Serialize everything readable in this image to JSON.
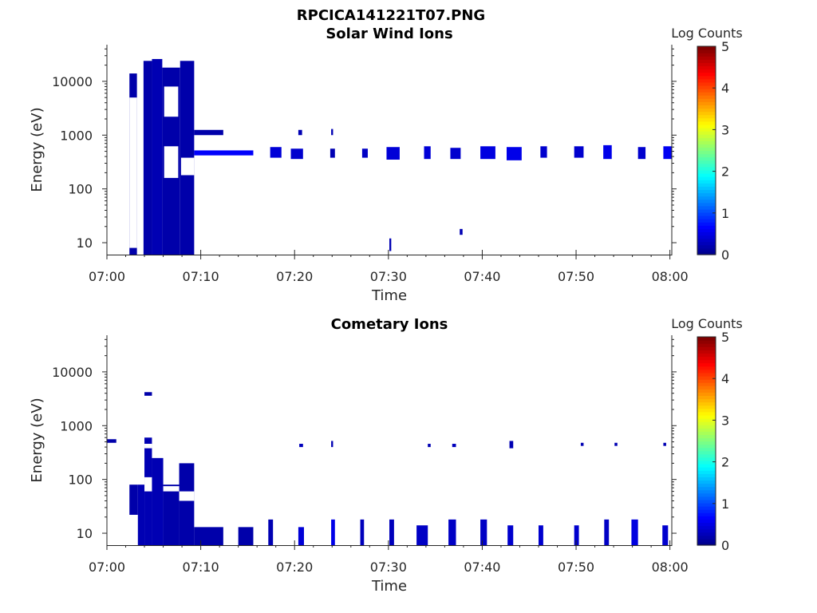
{
  "figure_title": "RPCICA141221T07.PNG",
  "colormap": [
    "#00008f",
    "#0000ff",
    "#0080ff",
    "#00ffff",
    "#80ff80",
    "#ffff00",
    "#ff8000",
    "#ff0000",
    "#800000"
  ],
  "chart_data": [
    {
      "type": "heatmap",
      "title": "Solar Wind Ions",
      "xlabel": "Time",
      "ylabel": "Energy (eV)",
      "x_ticks": [
        "07:00",
        "07:10",
        "07:20",
        "07:30",
        "07:40",
        "07:50",
        "08:00"
      ],
      "y_ticks": [
        "10",
        "100",
        "1000",
        "10000"
      ],
      "y_scale": "log",
      "xlim_minutes": [
        0,
        60.2
      ],
      "ylim_ev": [
        6,
        48000
      ],
      "colorbar": {
        "label": "Log Counts",
        "ticks": [
          "0",
          "1",
          "2",
          "3",
          "4",
          "5"
        ],
        "range": [
          0,
          5
        ]
      },
      "blocks": [
        {
          "t0": 2.4,
          "t1": 3.2,
          "e0": 6,
          "e1": 14000,
          "v": 0.15
        },
        {
          "t0": 3.9,
          "t1": 4.8,
          "e0": 6,
          "e1": 24000,
          "v": 0.15
        },
        {
          "t0": 4.8,
          "t1": 5.9,
          "e0": 6,
          "e1": 26000,
          "v": 0.2
        },
        {
          "t0": 5.9,
          "t1": 7.8,
          "e0": 6,
          "e1": 18000,
          "v": 0.15
        },
        {
          "t0": 7.8,
          "t1": 9.3,
          "e0": 6,
          "e1": 24000,
          "v": 0.15
        },
        {
          "t0": 9.3,
          "t1": 12.4,
          "e0": 1000,
          "e1": 1250,
          "v": 0.15
        },
        {
          "t0": 9.3,
          "t1": 15.6,
          "e0": 420,
          "e1": 520,
          "v": 0.6
        },
        {
          "t0": 17.4,
          "t1": 18.6,
          "e0": 380,
          "e1": 600,
          "v": 0.4
        },
        {
          "t0": 19.6,
          "t1": 20.9,
          "e0": 360,
          "e1": 560,
          "v": 0.35
        },
        {
          "t0": 20.4,
          "t1": 20.8,
          "e0": 1000,
          "e1": 1250,
          "v": 0.2
        },
        {
          "t0": 23.8,
          "t1": 24.3,
          "e0": 380,
          "e1": 560,
          "v": 0.2
        },
        {
          "t0": 23.9,
          "t1": 24.1,
          "e0": 1000,
          "e1": 1300,
          "v": 0.2
        },
        {
          "t0": 27.2,
          "t1": 27.8,
          "e0": 380,
          "e1": 560,
          "v": 0.3
        },
        {
          "t0": 29.8,
          "t1": 31.2,
          "e0": 350,
          "e1": 600,
          "v": 0.4
        },
        {
          "t0": 30.1,
          "t1": 30.3,
          "e0": 7,
          "e1": 12,
          "v": 0.2
        },
        {
          "t0": 33.8,
          "t1": 34.5,
          "e0": 360,
          "e1": 620,
          "v": 0.4
        },
        {
          "t0": 36.6,
          "t1": 37.7,
          "e0": 360,
          "e1": 580,
          "v": 0.35
        },
        {
          "t0": 37.6,
          "t1": 37.9,
          "e0": 14,
          "e1": 18,
          "v": 0.2
        },
        {
          "t0": 39.8,
          "t1": 41.4,
          "e0": 360,
          "e1": 620,
          "v": 0.45
        },
        {
          "t0": 42.6,
          "t1": 44.2,
          "e0": 340,
          "e1": 600,
          "v": 0.5
        },
        {
          "t0": 46.2,
          "t1": 46.9,
          "e0": 380,
          "e1": 620,
          "v": 0.35
        },
        {
          "t0": 49.8,
          "t1": 50.8,
          "e0": 380,
          "e1": 620,
          "v": 0.35
        },
        {
          "t0": 52.9,
          "t1": 53.8,
          "e0": 360,
          "e1": 650,
          "v": 0.5
        },
        {
          "t0": 56.6,
          "t1": 57.4,
          "e0": 360,
          "e1": 600,
          "v": 0.35
        },
        {
          "t0": 59.3,
          "t1": 60.2,
          "e0": 360,
          "e1": 620,
          "v": 0.55
        }
      ],
      "gaps": [
        {
          "t0": 2.4,
          "t1": 3.2,
          "e0": 8,
          "e1": 5000
        },
        {
          "t0": 6.1,
          "t1": 7.6,
          "e0": 160,
          "e1": 620
        },
        {
          "t0": 6.1,
          "t1": 7.6,
          "e0": 2200,
          "e1": 8000
        },
        {
          "t0": 7.9,
          "t1": 9.3,
          "e0": 180,
          "e1": 380
        }
      ]
    },
    {
      "type": "heatmap",
      "title": "Cometary Ions",
      "xlabel": "Time",
      "ylabel": "Energy (eV)",
      "x_ticks": [
        "07:00",
        "07:10",
        "07:20",
        "07:30",
        "07:40",
        "07:50",
        "08:00"
      ],
      "y_ticks": [
        "10",
        "100",
        "1000",
        "10000"
      ],
      "y_scale": "log",
      "xlim_minutes": [
        0,
        60.2
      ],
      "ylim_ev": [
        6,
        48000
      ],
      "colorbar": {
        "label": "Log Counts",
        "ticks": [
          "0",
          "1",
          "2",
          "3",
          "4",
          "5"
        ],
        "range": [
          0,
          5
        ]
      },
      "blocks": [
        {
          "t0": 0.0,
          "t1": 1.0,
          "e0": 480,
          "e1": 560,
          "v": 0.15
        },
        {
          "t0": 4.0,
          "t1": 4.8,
          "e0": 3600,
          "e1": 4200,
          "v": 0.15
        },
        {
          "t0": 2.4,
          "t1": 3.3,
          "e0": 22,
          "e1": 80,
          "v": 0.15
        },
        {
          "t0": 3.3,
          "t1": 4.0,
          "e0": 6,
          "e1": 80,
          "v": 0.2
        },
        {
          "t0": 4.0,
          "t1": 4.8,
          "e0": 6,
          "e1": 600,
          "v": 0.2
        },
        {
          "t0": 4.8,
          "t1": 6.0,
          "e0": 6,
          "e1": 250,
          "v": 0.2
        },
        {
          "t0": 6.0,
          "t1": 7.7,
          "e0": 6,
          "e1": 80,
          "v": 0.15
        },
        {
          "t0": 7.7,
          "t1": 9.3,
          "e0": 6,
          "e1": 200,
          "v": 0.15
        },
        {
          "t0": 9.3,
          "t1": 12.4,
          "e0": 6,
          "e1": 13,
          "v": 0.15
        },
        {
          "t0": 14.0,
          "t1": 15.6,
          "e0": 6,
          "e1": 13,
          "v": 0.15
        },
        {
          "t0": 17.2,
          "t1": 17.7,
          "e0": 6,
          "e1": 18,
          "v": 0.2
        },
        {
          "t0": 20.4,
          "t1": 21.0,
          "e0": 6,
          "e1": 13,
          "v": 0.4
        },
        {
          "t0": 20.5,
          "t1": 20.9,
          "e0": 400,
          "e1": 460,
          "v": 0.25
        },
        {
          "t0": 23.9,
          "t1": 24.3,
          "e0": 6,
          "e1": 18,
          "v": 0.5
        },
        {
          "t0": 23.9,
          "t1": 24.1,
          "e0": 400,
          "e1": 520,
          "v": 0.2
        },
        {
          "t0": 27.0,
          "t1": 27.4,
          "e0": 6,
          "e1": 18,
          "v": 0.25
        },
        {
          "t0": 30.1,
          "t1": 30.6,
          "e0": 6,
          "e1": 18,
          "v": 0.25
        },
        {
          "t0": 33.0,
          "t1": 34.2,
          "e0": 6,
          "e1": 14,
          "v": 0.3
        },
        {
          "t0": 34.2,
          "t1": 34.5,
          "e0": 400,
          "e1": 460,
          "v": 0.2
        },
        {
          "t0": 36.4,
          "t1": 37.2,
          "e0": 6,
          "e1": 18,
          "v": 0.3
        },
        {
          "t0": 36.8,
          "t1": 37.2,
          "e0": 400,
          "e1": 460,
          "v": 0.25
        },
        {
          "t0": 39.8,
          "t1": 40.5,
          "e0": 6,
          "e1": 18,
          "v": 0.3
        },
        {
          "t0": 42.7,
          "t1": 43.3,
          "e0": 6,
          "e1": 14,
          "v": 0.35
        },
        {
          "t0": 42.9,
          "t1": 43.3,
          "e0": 380,
          "e1": 520,
          "v": 0.2
        },
        {
          "t0": 46.0,
          "t1": 46.5,
          "e0": 6,
          "e1": 14,
          "v": 0.35
        },
        {
          "t0": 49.8,
          "t1": 50.3,
          "e0": 6,
          "e1": 14,
          "v": 0.35
        },
        {
          "t0": 50.5,
          "t1": 50.8,
          "e0": 420,
          "e1": 480,
          "v": 0.2
        },
        {
          "t0": 53.0,
          "t1": 53.5,
          "e0": 6,
          "e1": 18,
          "v": 0.3
        },
        {
          "t0": 54.1,
          "t1": 54.4,
          "e0": 420,
          "e1": 480,
          "v": 0.2
        },
        {
          "t0": 55.9,
          "t1": 56.6,
          "e0": 6,
          "e1": 18,
          "v": 0.45
        },
        {
          "t0": 59.2,
          "t1": 59.8,
          "e0": 6,
          "e1": 14,
          "v": 0.35
        },
        {
          "t0": 59.3,
          "t1": 59.6,
          "e0": 420,
          "e1": 480,
          "v": 0.2
        }
      ],
      "gaps": [
        {
          "t0": 4.0,
          "t1": 4.8,
          "e0": 60,
          "e1": 110
        },
        {
          "t0": 6.0,
          "t1": 7.7,
          "e0": 60,
          "e1": 75
        },
        {
          "t0": 7.7,
          "t1": 9.3,
          "e0": 40,
          "e1": 60
        },
        {
          "t0": 4.0,
          "t1": 4.8,
          "e0": 380,
          "e1": 460
        }
      ]
    }
  ]
}
